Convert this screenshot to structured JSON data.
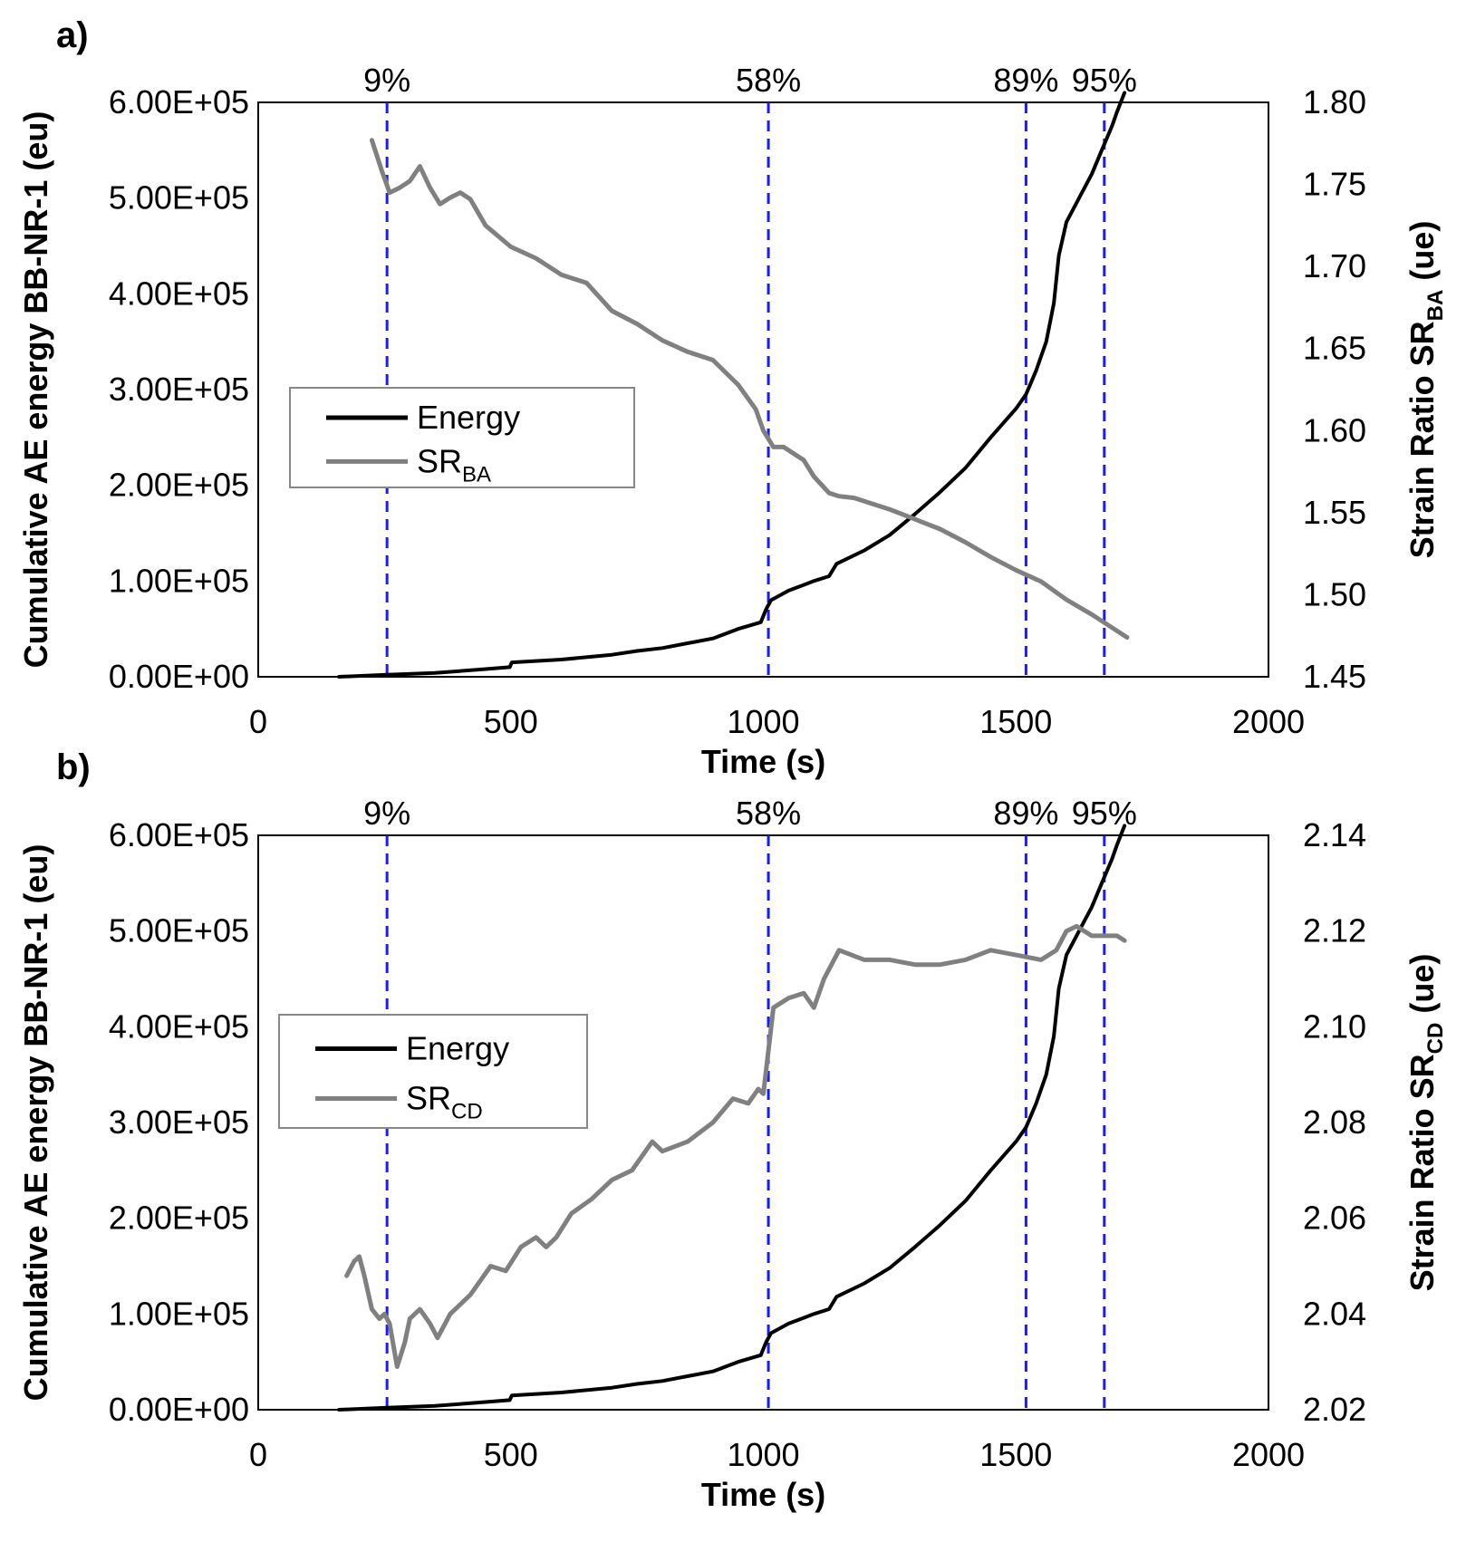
{
  "chart_data": [
    {
      "panel_label": "a)",
      "type": "line",
      "xlabel": "Time (s)",
      "ylabel_left": "Cumulative AE energy BB-NR-1 (eu)",
      "ylabel_right_main": "Strain Ratio SR",
      "ylabel_right_sub": "BA",
      "ylabel_right_tail": " (ue)",
      "xlim": [
        0,
        2000
      ],
      "ylim_left": [
        0,
        600000
      ],
      "ylim_right": [
        1.45,
        1.8
      ],
      "x_ticks": [
        "0",
        "500",
        "1000",
        "1500",
        "2000"
      ],
      "x_tick_values": [
        0,
        500,
        1000,
        1500,
        2000
      ],
      "y_left_ticks": [
        "0.00E+00",
        "1.00E+05",
        "2.00E+05",
        "3.00E+05",
        "4.00E+05",
        "5.00E+05",
        "6.00E+05"
      ],
      "y_left_tick_values": [
        0,
        100000,
        200000,
        300000,
        400000,
        500000,
        600000
      ],
      "y_right_ticks": [
        "1.45",
        "1.50",
        "1.55",
        "1.60",
        "1.65",
        "1.70",
        "1.75",
        "1.80"
      ],
      "y_right_tick_values": [
        1.45,
        1.5,
        1.55,
        1.6,
        1.65,
        1.7,
        1.75,
        1.8
      ],
      "markers": [
        {
          "label": "9%",
          "x": 255
        },
        {
          "label": "58%",
          "x": 1010
        },
        {
          "label": "89%",
          "x": 1520
        },
        {
          "label": "95%",
          "x": 1675
        }
      ],
      "legend": {
        "energy_label": "Energy",
        "sr_main": "SR",
        "sr_sub": "BA"
      },
      "colors": {
        "energy": "#000000",
        "sr": "#808080",
        "markers": "#1a1aff"
      },
      "series": [
        {
          "name": "Energy",
          "axis": "left",
          "x": [
            160,
            250,
            350,
            450,
            498,
            502,
            600,
            700,
            750,
            800,
            900,
            950,
            995,
            1005,
            1015,
            1050,
            1100,
            1130,
            1145,
            1200,
            1250,
            1300,
            1350,
            1400,
            1450,
            1500,
            1520,
            1540,
            1560,
            1575,
            1585,
            1600,
            1630,
            1650,
            1670,
            1690,
            1700,
            1715
          ],
          "values": [
            0,
            2000,
            4000,
            8000,
            10000,
            15000,
            18000,
            23000,
            27000,
            30000,
            40000,
            50000,
            57000,
            70000,
            80000,
            90000,
            100000,
            105000,
            118000,
            132000,
            148000,
            170000,
            193000,
            218000,
            250000,
            280000,
            295000,
            320000,
            350000,
            390000,
            440000,
            475000,
            505000,
            525000,
            550000,
            575000,
            590000,
            610000
          ]
        },
        {
          "name": "SR BA",
          "axis": "right",
          "x": [
            225,
            245,
            260,
            280,
            300,
            320,
            340,
            360,
            380,
            400,
            420,
            450,
            500,
            550,
            600,
            650,
            700,
            750,
            800,
            850,
            900,
            950,
            985,
            1000,
            1020,
            1040,
            1080,
            1100,
            1130,
            1150,
            1180,
            1250,
            1300,
            1350,
            1400,
            1450,
            1500,
            1550,
            1600,
            1650,
            1700,
            1720
          ],
          "values": [
            1.777,
            1.758,
            1.745,
            1.748,
            1.752,
            1.761,
            1.748,
            1.738,
            1.742,
            1.745,
            1.741,
            1.725,
            1.712,
            1.705,
            1.695,
            1.69,
            1.673,
            1.665,
            1.655,
            1.648,
            1.643,
            1.628,
            1.613,
            1.6,
            1.59,
            1.59,
            1.582,
            1.572,
            1.562,
            1.56,
            1.559,
            1.552,
            1.546,
            1.54,
            1.532,
            1.523,
            1.515,
            1.508,
            1.497,
            1.488,
            1.478,
            1.474
          ]
        }
      ]
    },
    {
      "panel_label": "b)",
      "type": "line",
      "xlabel": "Time (s)",
      "ylabel_left": "Cumulative AE energy BB-NR-1 (eu)",
      "ylabel_right_main": "Strain Ratio SR",
      "ylabel_right_sub": "CD",
      "ylabel_right_tail": " (ue)",
      "xlim": [
        0,
        2000
      ],
      "ylim_left": [
        0,
        600000
      ],
      "ylim_right": [
        2.02,
        2.14
      ],
      "x_ticks": [
        "0",
        "500",
        "1000",
        "1500",
        "2000"
      ],
      "x_tick_values": [
        0,
        500,
        1000,
        1500,
        2000
      ],
      "y_left_ticks": [
        "0.00E+00",
        "1.00E+05",
        "2.00E+05",
        "3.00E+05",
        "4.00E+05",
        "5.00E+05",
        "6.00E+05"
      ],
      "y_left_tick_values": [
        0,
        100000,
        200000,
        300000,
        400000,
        500000,
        600000
      ],
      "y_right_ticks": [
        "2.02",
        "2.04",
        "2.06",
        "2.08",
        "2.10",
        "2.12",
        "2.14"
      ],
      "y_right_tick_values": [
        2.02,
        2.04,
        2.06,
        2.08,
        2.1,
        2.12,
        2.14
      ],
      "markers": [
        {
          "label": "9%",
          "x": 255
        },
        {
          "label": "58%",
          "x": 1010
        },
        {
          "label": "89%",
          "x": 1520
        },
        {
          "label": "95%",
          "x": 1675
        }
      ],
      "legend": {
        "energy_label": "Energy",
        "sr_main": "SR",
        "sr_sub": "CD"
      },
      "colors": {
        "energy": "#000000",
        "sr": "#808080",
        "markers": "#1a1aff"
      },
      "series": [
        {
          "name": "Energy",
          "axis": "left",
          "x": [
            160,
            250,
            350,
            450,
            498,
            502,
            600,
            700,
            750,
            800,
            900,
            950,
            995,
            1005,
            1015,
            1050,
            1100,
            1130,
            1145,
            1200,
            1250,
            1300,
            1350,
            1400,
            1450,
            1500,
            1520,
            1540,
            1560,
            1575,
            1585,
            1600,
            1630,
            1650,
            1670,
            1690,
            1700,
            1715
          ],
          "values": [
            0,
            2000,
            4000,
            8000,
            10000,
            15000,
            18000,
            23000,
            27000,
            30000,
            40000,
            50000,
            57000,
            70000,
            80000,
            90000,
            100000,
            105000,
            118000,
            132000,
            148000,
            170000,
            193000,
            218000,
            250000,
            280000,
            295000,
            320000,
            350000,
            390000,
            440000,
            475000,
            505000,
            525000,
            550000,
            575000,
            590000,
            610000
          ]
        },
        {
          "name": "SR CD",
          "axis": "right",
          "x": [
            175,
            190,
            200,
            210,
            225,
            240,
            250,
            260,
            275,
            290,
            300,
            320,
            340,
            355,
            380,
            420,
            460,
            490,
            520,
            550,
            570,
            590,
            620,
            660,
            700,
            740,
            780,
            800,
            850,
            900,
            940,
            970,
            990,
            1000,
            1010,
            1020,
            1050,
            1080,
            1100,
            1120,
            1150,
            1200,
            1250,
            1300,
            1350,
            1400,
            1450,
            1500,
            1550,
            1580,
            1600,
            1620,
            1650,
            1680,
            1700,
            1715
          ],
          "values": [
            2.048,
            2.051,
            2.052,
            2.048,
            2.041,
            2.039,
            2.04,
            2.038,
            2.029,
            2.034,
            2.039,
            2.041,
            2.038,
            2.035,
            2.04,
            2.044,
            2.05,
            2.049,
            2.054,
            2.056,
            2.054,
            2.056,
            2.061,
            2.064,
            2.068,
            2.07,
            2.076,
            2.074,
            2.076,
            2.08,
            2.085,
            2.084,
            2.087,
            2.086,
            2.095,
            2.104,
            2.106,
            2.107,
            2.104,
            2.11,
            2.116,
            2.114,
            2.114,
            2.113,
            2.113,
            2.114,
            2.116,
            2.115,
            2.114,
            2.116,
            2.12,
            2.121,
            2.119,
            2.119,
            2.119,
            2.118
          ]
        }
      ]
    }
  ]
}
